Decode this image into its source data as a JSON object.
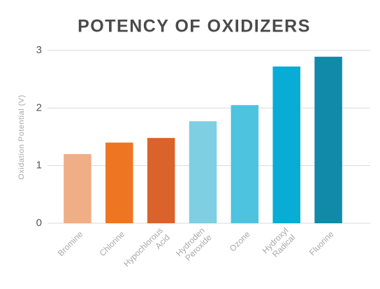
{
  "chart_data": {
    "type": "bar",
    "title": "POTENCY OF OXIDIZERS",
    "y_label": "Oxidation Potential (V)",
    "categories": [
      "Bromine",
      "Chlorine",
      "Hypochlorous Acid",
      "Hydroden Peroxide",
      "Ozone",
      "Hydroxyl Radical",
      "Fluorine"
    ],
    "values": [
      1.2,
      1.4,
      1.48,
      1.77,
      2.05,
      2.72,
      2.89
    ],
    "colors": [
      "#f0ae86",
      "#ee7623",
      "#d9632a",
      "#7ecfe2",
      "#4dc3df",
      "#08acd5",
      "#1189a8"
    ],
    "ylim": [
      0,
      3
    ],
    "yticks": [
      0,
      1,
      2,
      3
    ],
    "grid": true
  }
}
